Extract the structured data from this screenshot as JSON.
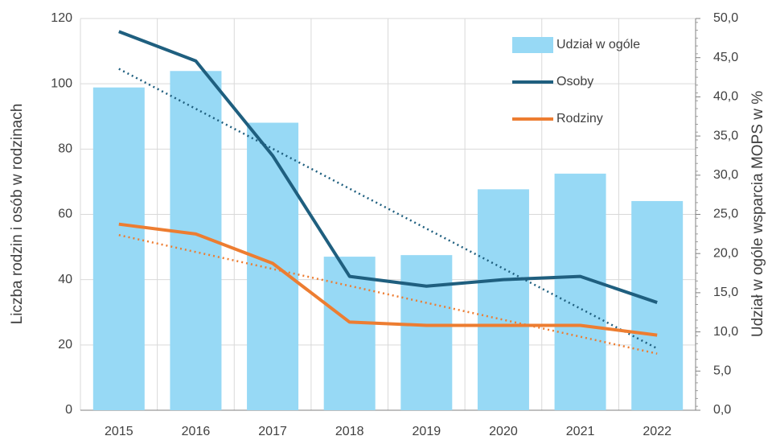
{
  "chart_data": {
    "type": "bar-line",
    "y_label": "Liczba rodzin i osób w rodzinach",
    "y2_label": "Udział w ogóle wsparcia MOPS w %",
    "categories": [
      "2015",
      "2016",
      "2017",
      "2018",
      "2019",
      "2020",
      "2021",
      "2022"
    ],
    "series": [
      {
        "name": "Udział w ogóle",
        "type": "bar",
        "axis": "y2",
        "color": "#97d9f5",
        "values": [
          41.2,
          43.3,
          36.7,
          19.6,
          19.8,
          28.2,
          30.2,
          26.7
        ]
      },
      {
        "name": "Osoby",
        "type": "line",
        "color": "#1f5f7f",
        "trendline": true,
        "values": [
          116,
          107,
          78,
          41,
          38,
          40,
          41,
          33
        ]
      },
      {
        "name": "Rodziny",
        "type": "line",
        "color": "#ed7d31",
        "trendline": true,
        "values": [
          57,
          54,
          45,
          27,
          26,
          26,
          26,
          23
        ]
      }
    ],
    "ylim": [
      0,
      120
    ],
    "yticks": [
      0,
      20,
      40,
      60,
      80,
      100,
      120
    ],
    "y2lim": [
      0,
      50
    ],
    "y2ticks": [
      {
        "value": 0,
        "label": "0,0"
      },
      {
        "value": 5,
        "label": "5,0"
      },
      {
        "value": 10,
        "label": "10,0"
      },
      {
        "value": 15,
        "label": "15,0"
      },
      {
        "value": 20,
        "label": "20,0"
      },
      {
        "value": 25,
        "label": "25,0"
      },
      {
        "value": 30,
        "label": "30,0"
      },
      {
        "value": 35,
        "label": "35,0"
      },
      {
        "value": 40,
        "label": "40,0"
      },
      {
        "value": 45,
        "label": "45,0"
      },
      {
        "value": 50,
        "label": "50,0"
      }
    ],
    "grid": true,
    "legend": "top-right"
  }
}
